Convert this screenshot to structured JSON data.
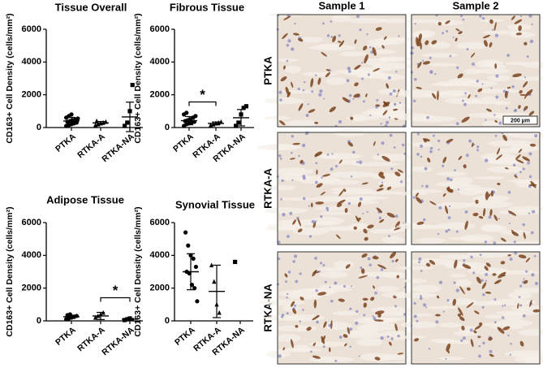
{
  "chart_data": [
    {
      "type": "dot",
      "title": "Tissue Overall",
      "ylabel": "CD163+ Cell Density (cells/mm²)",
      "categories": [
        "PTKA",
        "RTKA-A",
        "RTKA-NA"
      ],
      "markers": [
        "circle",
        "triangle",
        "square"
      ],
      "color": "#000000",
      "points": [
        [
          100,
          150,
          200,
          250,
          300,
          350,
          400,
          450,
          500,
          550,
          600,
          700,
          800
        ],
        [
          150,
          200,
          250,
          300,
          350,
          400
        ],
        [
          100,
          300,
          1000,
          2600
        ]
      ],
      "mean": [
        400,
        280,
        650
      ],
      "sd": [
        220,
        90,
        900
      ],
      "ylim": [
        0,
        6000
      ],
      "yticks": [
        0,
        2000,
        4000,
        6000
      ],
      "significance": []
    },
    {
      "type": "dot",
      "title": "Fibrous Tissue",
      "ylabel": "CD163+ Cell Density (cells/mm²)",
      "categories": [
        "PTKA",
        "RTKA-A",
        "RTKA-NA"
      ],
      "markers": [
        "circle",
        "triangle",
        "square"
      ],
      "color": "#000000",
      "points": [
        [
          100,
          200,
          250,
          300,
          350,
          400,
          450,
          500,
          600,
          700,
          800,
          900
        ],
        [
          150,
          200,
          250,
          300,
          350
        ],
        [
          100,
          300,
          800,
          1200,
          1300
        ]
      ],
      "mean": [
        420,
        250,
        600
      ],
      "sd": [
        250,
        90,
        500
      ],
      "ylim": [
        0,
        6000
      ],
      "yticks": [
        0,
        2000,
        4000,
        6000
      ],
      "significance": [
        {
          "label": "*",
          "from": "PTKA",
          "to": "RTKA-A"
        }
      ]
    },
    {
      "type": "dot",
      "title": "Adipose Tissue",
      "ylabel": "CD163+ Cell Density (cells/mm²)",
      "categories": [
        "PTKA",
        "RTKA-A",
        "RTKA-NA"
      ],
      "markers": [
        "circle",
        "triangle",
        "square"
      ],
      "color": "#000000",
      "points": [
        [
          100,
          150,
          200,
          250,
          300,
          350,
          400
        ],
        [
          200,
          300,
          400,
          500
        ],
        [
          50,
          100,
          150
        ]
      ],
      "mean": [
        250,
        300,
        100
      ],
      "sd": [
        100,
        220,
        50
      ],
      "ylim": [
        0,
        6000
      ],
      "yticks": [
        0,
        2000,
        4000,
        6000
      ],
      "significance": [
        {
          "label": "*",
          "from": "RTKA-A",
          "to": "RTKA-NA"
        }
      ]
    },
    {
      "type": "dot",
      "title": "Synovial Tissue",
      "ylabel": "CD163+ Cell Density (cells/mm²)",
      "categories": [
        "PTKA",
        "RTKA-A",
        "RTKA-NA"
      ],
      "markers": [
        "circle",
        "triangle",
        "square"
      ],
      "color": "#000000",
      "points": [
        [
          5400,
          4600,
          4000,
          3800,
          3300,
          3000,
          2900,
          2200,
          2000,
          1200
        ],
        [
          3400,
          2400,
          1000,
          500
        ],
        [
          3600
        ]
      ],
      "mean": [
        3000,
        1800,
        null
      ],
      "sd": [
        1100,
        1600,
        null
      ],
      "ylim": [
        0,
        6000
      ],
      "yticks": [
        0,
        2000,
        4000,
        6000
      ],
      "significance": []
    }
  ],
  "micrographs": {
    "columns": [
      "Sample 1",
      "Sample 2"
    ],
    "rows": [
      "PTKA",
      "RTKA-A",
      "RTKA-NA"
    ],
    "scale_bar": "200 µm"
  }
}
